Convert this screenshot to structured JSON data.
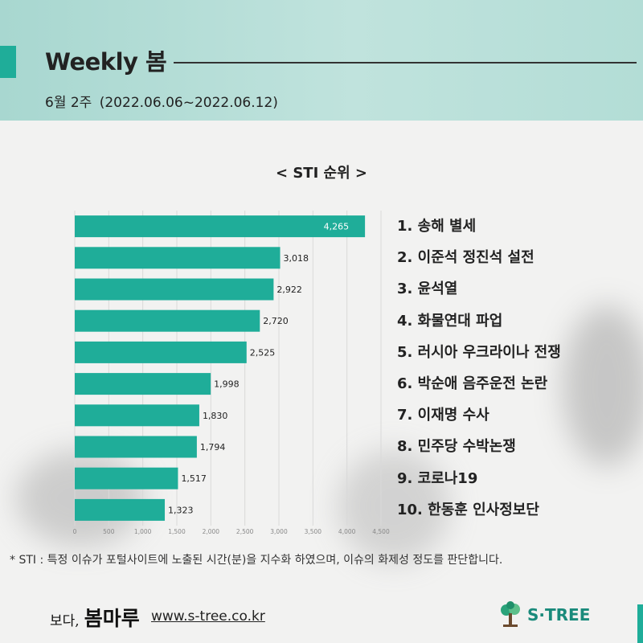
{
  "header": {
    "title": "Weekly 봄",
    "week": "6월 2주",
    "range": "(2022.06.06~2022.06.12)"
  },
  "chart_title": "< STI 순위 >",
  "chart_data": {
    "type": "bar",
    "orientation": "horizontal",
    "categories": [
      "1",
      "2",
      "3",
      "4",
      "5",
      "6",
      "7",
      "8",
      "9",
      "10"
    ],
    "values": [
      4265,
      3018,
      2922,
      2720,
      2525,
      1998,
      1830,
      1794,
      1517,
      1323
    ],
    "value_labels": [
      "4,265",
      "3,018",
      "2,922",
      "2,720",
      "2,525",
      "1,998",
      "1,830",
      "1,794",
      "1,517",
      "1,323"
    ],
    "xlim": [
      0,
      4500
    ],
    "x_ticks": [
      0,
      500,
      1000,
      1500,
      2000,
      2500,
      3000,
      3500,
      4000,
      4500
    ],
    "x_tick_labels": [
      "0",
      "500",
      "1,000",
      "1,500",
      "2,000",
      "2,500",
      "3,000",
      "3,500",
      "4,000",
      "4,500"
    ],
    "grid": true,
    "bar_color": "#1fad99",
    "first_label_color": "#ffffff"
  },
  "rankings": [
    "1. 송해 별세",
    "2. 이준석 정진석 설전",
    "3. 윤석열",
    "4. 화물연대 파업",
    "5. 러시아 우크라이나 전쟁",
    "6. 박순애 음주운전 논란",
    "7. 이재명 수사",
    "8. 민주당 수박논쟁",
    "9. 코로나19",
    "10. 한동훈 인사정보단"
  ],
  "footnote": "* STI : 특정 이슈가 포털사이트에 노출된 시간(분)을 지수화 하였으며, 이슈의 화제성 정도를 판단합니다.",
  "footer": {
    "brand_small": "보다,",
    "brand_big": "봄마루",
    "url": "www.s-tree.co.kr",
    "logo_text": "S·TREE"
  },
  "colors": {
    "accent": "#1fad99",
    "header_bg": "#b3ddd6"
  },
  "icons": {
    "logo": "tree-icon"
  }
}
